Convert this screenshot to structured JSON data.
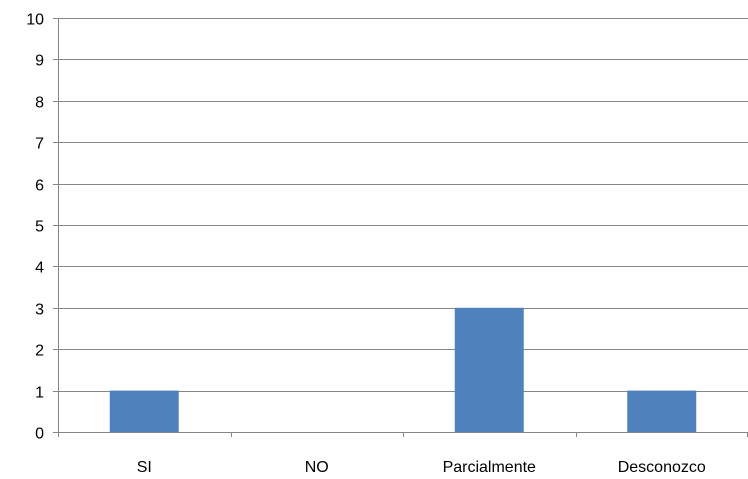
{
  "chart_data": {
    "type": "bar",
    "categories": [
      "SI",
      "NO",
      "Parcialmente",
      "Desconozco"
    ],
    "values": [
      1,
      0,
      3,
      1
    ],
    "ylim": [
      0,
      10
    ],
    "yticks": [
      0,
      1,
      2,
      3,
      4,
      5,
      6,
      7,
      8,
      9,
      10
    ],
    "grid": true,
    "legend": "none",
    "title": "",
    "xlabel": "",
    "ylabel": "",
    "bar_color": "#4F81BD"
  }
}
